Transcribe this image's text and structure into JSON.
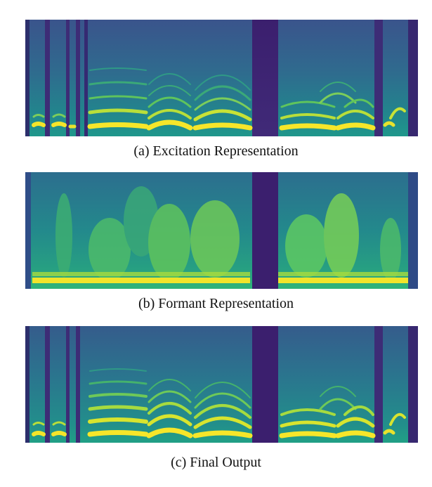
{
  "captions": {
    "a": "(a) Excitation Representation",
    "b": "(b) Formant Representation",
    "c": "(c) Final Output"
  },
  "colors": {
    "viridis_dark": "#440154",
    "viridis_indigo": "#3b528b",
    "viridis_teal": "#21918c",
    "viridis_green": "#5ec962",
    "viridis_yellow": "#fde725"
  }
}
